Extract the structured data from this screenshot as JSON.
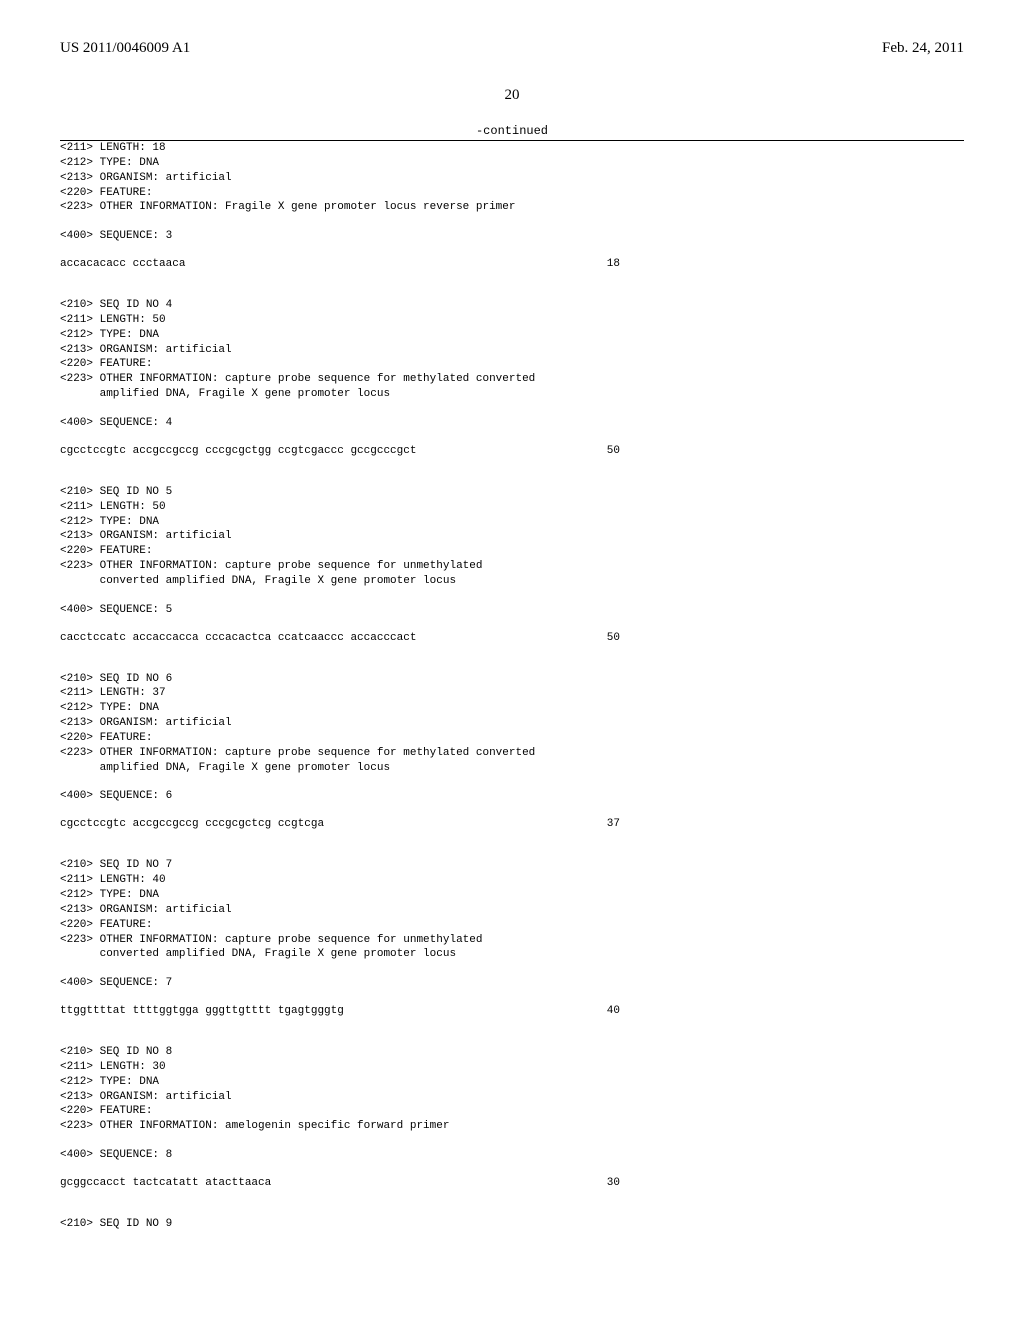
{
  "header": {
    "pub_number": "US 2011/0046009 A1",
    "pub_date": "Feb. 24, 2011"
  },
  "page_number": "20",
  "continued_label": "-continued",
  "entries": [
    {
      "headers_pre": [
        "<211> LENGTH: 18",
        "<212> TYPE: DNA",
        "<213> ORGANISM: artificial",
        "<220> FEATURE:",
        "<223> OTHER INFORMATION: Fragile X gene promoter locus reverse primer"
      ],
      "seq_label": "<400> SEQUENCE: 3",
      "sequence": "accacacacc ccctaaca",
      "seq_len": "18"
    },
    {
      "headers_pre": [
        "<210> SEQ ID NO 4",
        "<211> LENGTH: 50",
        "<212> TYPE: DNA",
        "<213> ORGANISM: artificial",
        "<220> FEATURE:",
        "<223> OTHER INFORMATION: capture probe sequence for methylated converted",
        "      amplified DNA, Fragile X gene promoter locus"
      ],
      "seq_label": "<400> SEQUENCE: 4",
      "sequence": "cgcctccgtc accgccgccg cccgcgctgg ccgtcgaccc gccgcccgct",
      "seq_len": "50"
    },
    {
      "headers_pre": [
        "<210> SEQ ID NO 5",
        "<211> LENGTH: 50",
        "<212> TYPE: DNA",
        "<213> ORGANISM: artificial",
        "<220> FEATURE:",
        "<223> OTHER INFORMATION: capture probe sequence for unmethylated",
        "      converted amplified DNA, Fragile X gene promoter locus"
      ],
      "seq_label": "<400> SEQUENCE: 5",
      "sequence": "cacctccatc accaccacca cccacactca ccatcaaccc accacccact",
      "seq_len": "50"
    },
    {
      "headers_pre": [
        "<210> SEQ ID NO 6",
        "<211> LENGTH: 37",
        "<212> TYPE: DNA",
        "<213> ORGANISM: artificial",
        "<220> FEATURE:",
        "<223> OTHER INFORMATION: capture probe sequence for methylated converted",
        "      amplified DNA, Fragile X gene promoter locus"
      ],
      "seq_label": "<400> SEQUENCE: 6",
      "sequence": "cgcctccgtc accgccgccg cccgcgctcg ccgtcga",
      "seq_len": "37"
    },
    {
      "headers_pre": [
        "<210> SEQ ID NO 7",
        "<211> LENGTH: 40",
        "<212> TYPE: DNA",
        "<213> ORGANISM: artificial",
        "<220> FEATURE:",
        "<223> OTHER INFORMATION: capture probe sequence for unmethylated",
        "      converted amplified DNA, Fragile X gene promoter locus"
      ],
      "seq_label": "<400> SEQUENCE: 7",
      "sequence": "ttggttttat ttttggtgga gggttgtttt tgagtgggtg",
      "seq_len": "40"
    },
    {
      "headers_pre": [
        "<210> SEQ ID NO 8",
        "<211> LENGTH: 30",
        "<212> TYPE: DNA",
        "<213> ORGANISM: artificial",
        "<220> FEATURE:",
        "<223> OTHER INFORMATION: amelogenin specific forward primer"
      ],
      "seq_label": "<400> SEQUENCE: 8",
      "sequence": "gcggccacct tactcatatt atacttaaca",
      "seq_len": "30"
    }
  ],
  "trailing_line": "<210> SEQ ID NO 9"
}
